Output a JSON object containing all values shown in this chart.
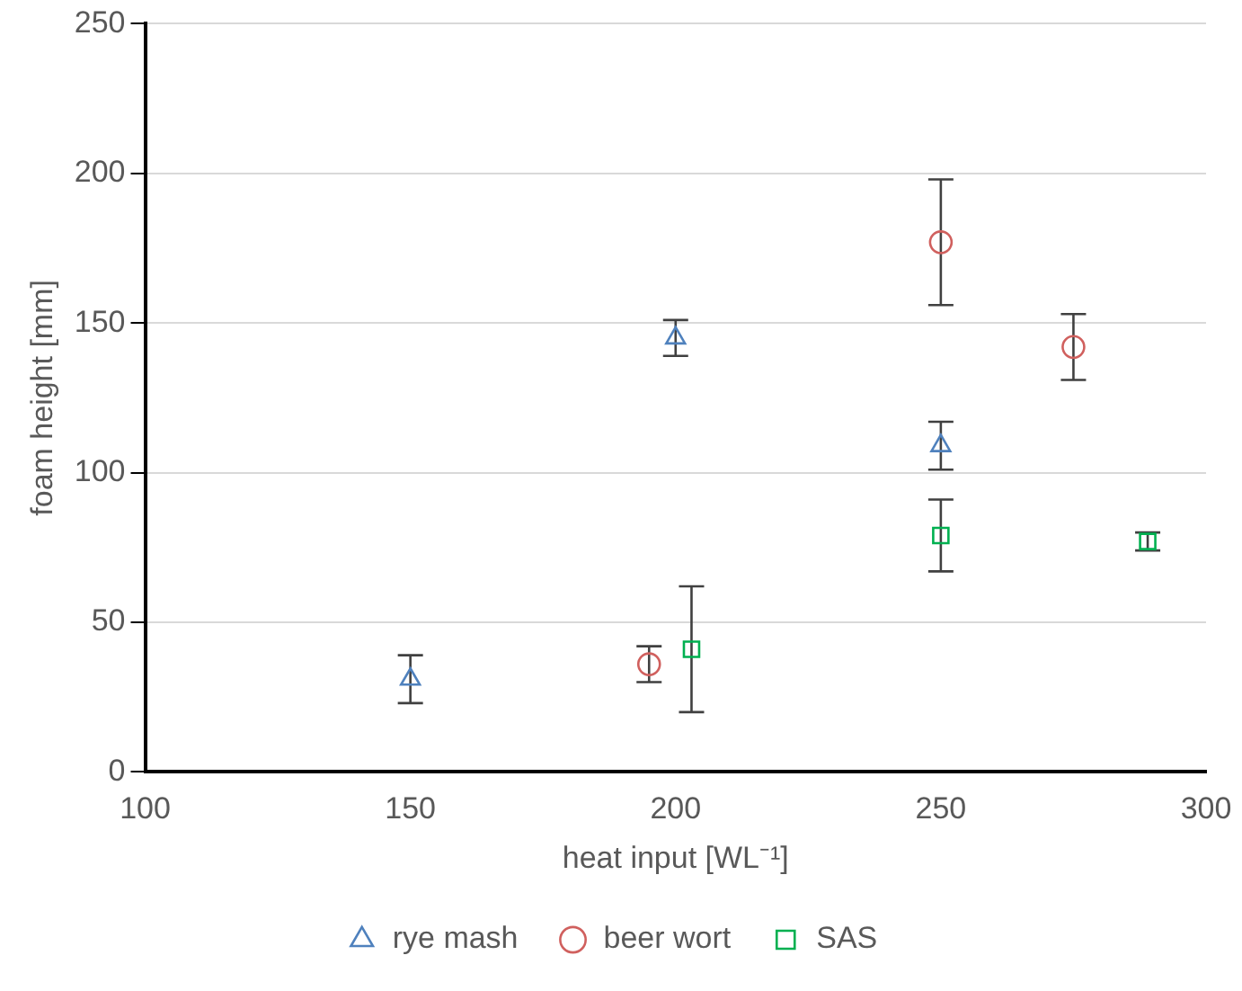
{
  "chart_data": {
    "type": "scatter",
    "xlabel": "heat input [WL⁻¹]",
    "ylabel": "foam height [mm]",
    "xlim": [
      100,
      300
    ],
    "xticks": [
      100,
      150,
      200,
      250,
      300
    ],
    "ylim": [
      0,
      250
    ],
    "yticks": [
      0,
      50,
      100,
      150,
      200,
      250
    ],
    "grid": "y",
    "legend": "bottom",
    "series": [
      {
        "name": "rye mash",
        "color": "#4f81bd",
        "marker": "triangle",
        "x": [
          150,
          200,
          250
        ],
        "values": [
          31,
          145,
          109
        ],
        "errors": [
          8,
          6,
          8
        ]
      },
      {
        "name": "beer wort",
        "color": "#d0605e",
        "marker": "circle",
        "x": [
          195,
          250,
          275
        ],
        "values": [
          36,
          177,
          142
        ],
        "errors": [
          6,
          21,
          11
        ]
      },
      {
        "name": "SAS",
        "color": "#00b050",
        "marker": "square",
        "x": [
          203,
          250,
          289
        ],
        "values": [
          41,
          79,
          77
        ],
        "errors": [
          21,
          12,
          3
        ]
      }
    ]
  }
}
